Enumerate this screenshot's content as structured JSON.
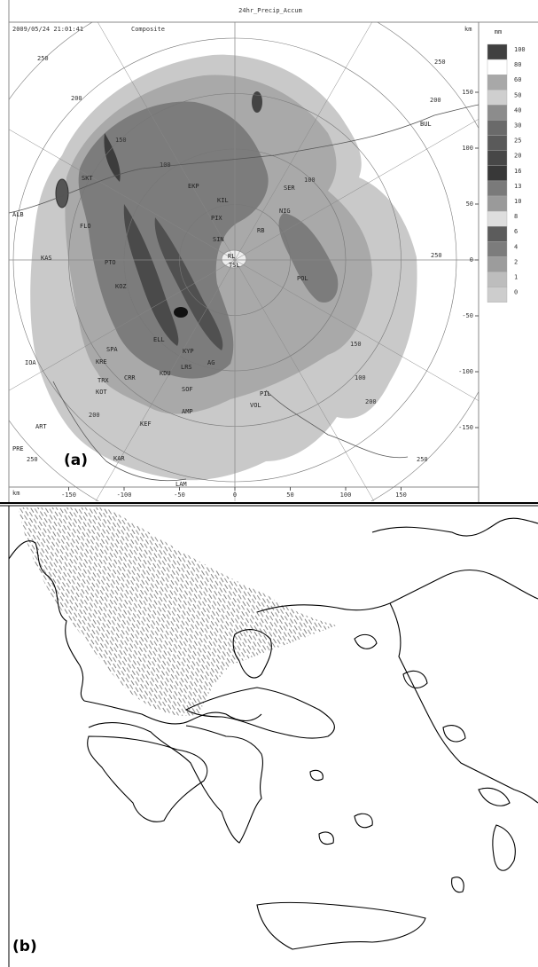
{
  "panel_a": {
    "title": "24hr_Precip_Accum",
    "timestamp": "2009/05/24 21:01:41",
    "mode": "Composite",
    "km_top": "km",
    "legend": {
      "unit": "mm",
      "labels": [
        "100",
        "80",
        "60",
        "50",
        "40",
        "30",
        "25",
        "20",
        "16",
        "13",
        "10",
        "8",
        "6",
        "4",
        "2",
        "1",
        "0"
      ]
    },
    "x_axis": {
      "unit": "km",
      "ticks": [
        "-150",
        "-100",
        "-50",
        "0",
        "50",
        "100",
        "150"
      ]
    },
    "y_ticks": [
      "150",
      "100",
      "50",
      "0",
      "-50",
      "-100",
      "-150"
    ],
    "ring_labels": [
      "250",
      "200",
      "250",
      "200",
      "250",
      "250",
      "150",
      "100",
      "100",
      "150",
      "100",
      "200",
      "200",
      "250"
    ],
    "stations": [
      "BUL",
      "ALB",
      "IOA",
      "ART",
      "PRE",
      "KAR",
      "LAM",
      "FLO",
      "KAS",
      "PTO",
      "SKT",
      "KIL",
      "EKP",
      "PIX",
      "SER",
      "NIG",
      "RB",
      "SIN",
      "RL",
      "TSL",
      "POL",
      "KOZ",
      "ELL",
      "KYP",
      "AG",
      "LRS",
      "KDU",
      "SOF",
      "AMP",
      "PIL",
      "VOL",
      "KEF",
      "SPA",
      "KRE",
      "TRX",
      "KOT",
      "CRR"
    ],
    "panel_label": "(a)"
  },
  "panel_b": {
    "panel_label": "(b)"
  }
}
